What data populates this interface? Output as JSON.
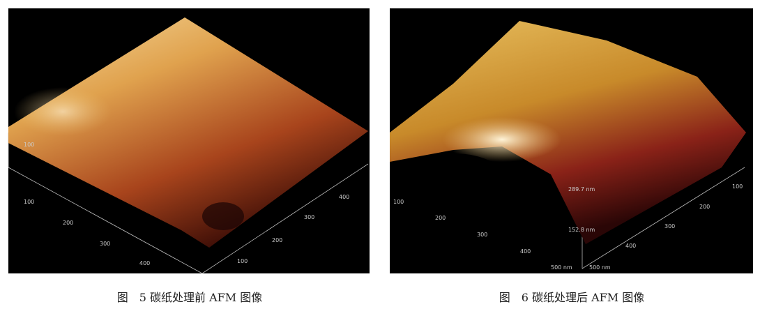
{
  "figures": [
    {
      "axis_labels": [
        "100",
        "100",
        "200",
        "300",
        "400",
        "100",
        "200",
        "300",
        "400"
      ],
      "caption": "图　5 碳纸处理前 AFM 图像"
    },
    {
      "axis_labels": [
        "100",
        "200",
        "300",
        "400",
        "500 nm",
        "500 nm",
        "400",
        "300",
        "200",
        "100",
        "289.7 nm",
        "152.8 nm"
      ],
      "caption": "图　6 碳纸处理后 AFM 图像"
    }
  ]
}
